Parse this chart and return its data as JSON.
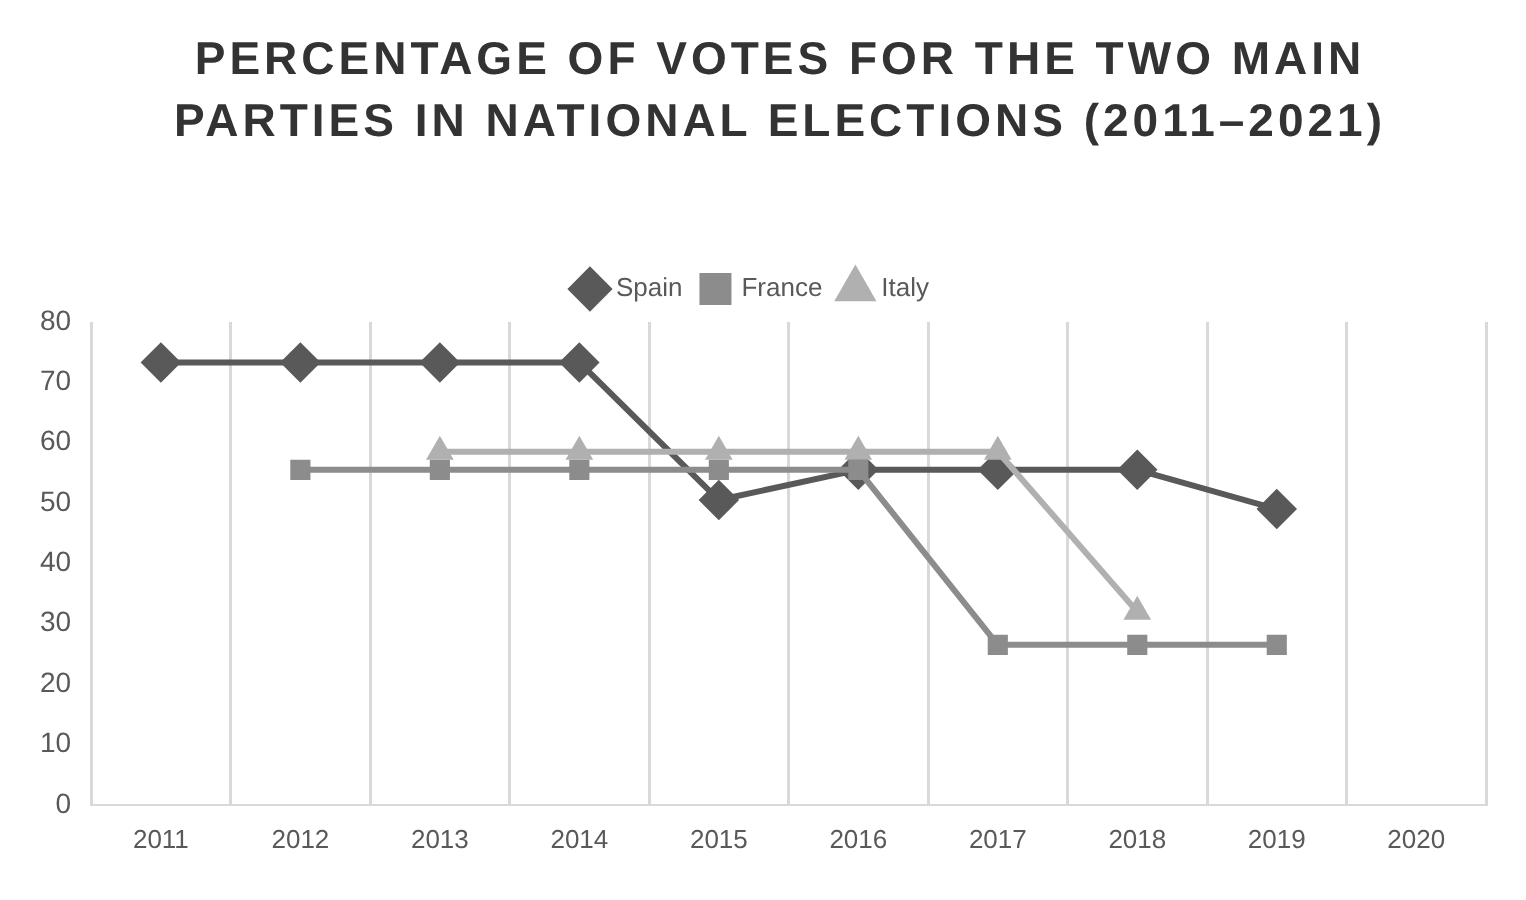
{
  "chart_data": {
    "type": "line",
    "title": "PERCENTAGE OF VOTES FOR THE TWO MAIN PARTIES IN NATIONAL ELECTIONS (2011–2021)",
    "categories": [
      "2011",
      "2012",
      "2013",
      "2014",
      "2015",
      "2016",
      "2017",
      "2018",
      "2019",
      "2020"
    ],
    "series": [
      {
        "name": "Spain",
        "color": "#595959",
        "marker": "diamond",
        "values": [
          73.3,
          73.3,
          73.3,
          73.3,
          50.5,
          55.5,
          55.5,
          55.5,
          49,
          null
        ]
      },
      {
        "name": "France",
        "color": "#8c8c8c",
        "marker": "square",
        "values": [
          null,
          55.5,
          55.5,
          55.5,
          55.5,
          55.5,
          26.5,
          26.5,
          26.5,
          null
        ]
      },
      {
        "name": "Italy",
        "color": "#b0b0b0",
        "marker": "triangle",
        "values": [
          null,
          null,
          58.5,
          58.5,
          58.5,
          58.5,
          58.5,
          32,
          null,
          null
        ]
      }
    ],
    "ylim": [
      0,
      80
    ],
    "yticks": [
      0,
      10,
      20,
      30,
      40,
      50,
      60,
      70,
      80
    ],
    "grid": "x",
    "legend": "top"
  }
}
